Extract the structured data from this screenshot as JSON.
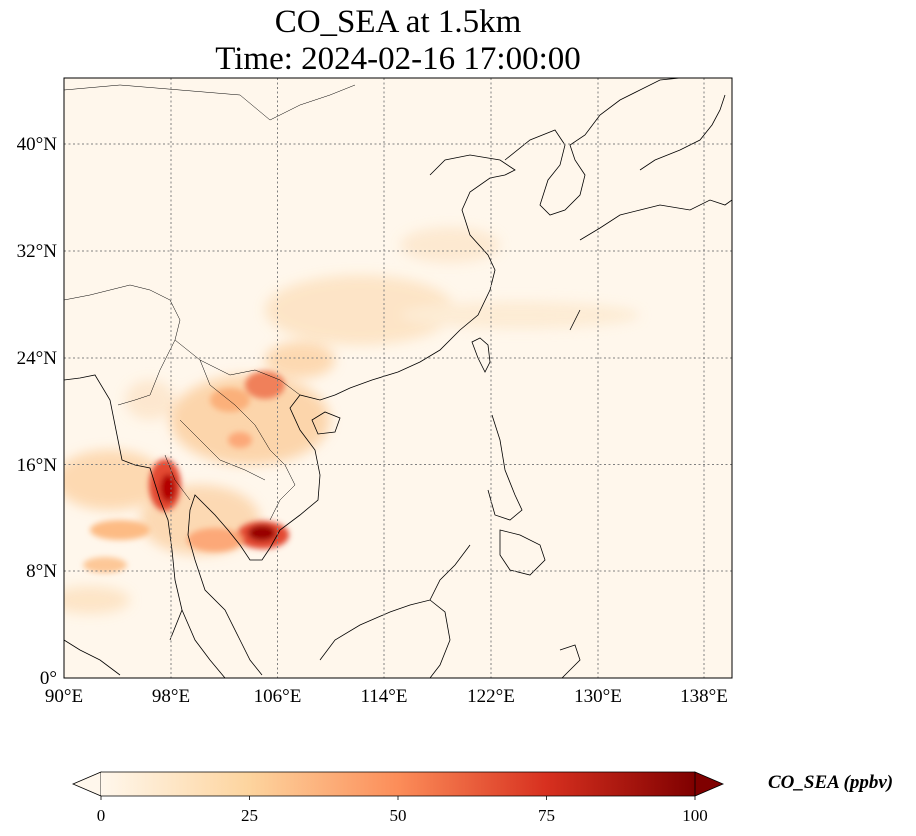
{
  "title_line1": "CO_SEA at 1.5km",
  "title_line2": "Time: 2024-02-16 17:00:00",
  "map": {
    "extent_lon": [
      90,
      140
    ],
    "extent_lat": [
      0,
      45
    ],
    "lon_ticks": [
      "90°E",
      "98°E",
      "106°E",
      "114°E",
      "122°E",
      "130°E",
      "138°E"
    ],
    "lat_ticks": [
      "0°",
      "8°N",
      "16°N",
      "24°N",
      "32°N",
      "40°N"
    ],
    "gridlines": "dotted",
    "colormap": "OrRd"
  },
  "colorbar": {
    "label": "CO_SEA (ppbv)",
    "ticks": [
      "0",
      "25",
      "50",
      "75",
      "100"
    ],
    "range": [
      0,
      100
    ],
    "extend": "both",
    "colors": [
      "#fff7ec",
      "#fdd49e",
      "#fc8d59",
      "#d7301f",
      "#7f0000"
    ]
  }
}
